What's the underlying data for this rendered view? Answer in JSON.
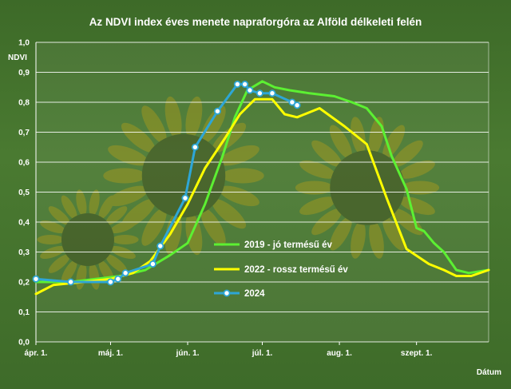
{
  "chart_data": {
    "type": "line",
    "title": "Az NDVI index éves menete napraforgóra az Alföld délkeleti felén",
    "ylabel": "NDVI",
    "xlabel": "Dátum",
    "ylim": [
      0,
      1.0
    ],
    "yticks": [
      "0,0",
      "0,1",
      "0,2",
      "0,3",
      "0,4",
      "0,5",
      "0,6",
      "0,7",
      "0,8",
      "0,9",
      "1,0"
    ],
    "xticks": [
      "ápr. 1.",
      "máj. 1.",
      "jún. 1.",
      "júl. 1.",
      "aug. 1.",
      "szept. 1."
    ],
    "xlim": [
      "2000-04-01",
      "2000-09-30"
    ],
    "grid": true,
    "legend_position": "bottom-right",
    "colors": {
      "series_2019": "#5cf032",
      "series_2022": "#ffff00",
      "series_2024": "#2ea6d6",
      "marker_fill": "#ffffff"
    },
    "series": [
      {
        "name": "2019 - jó termésű év",
        "points": [
          [
            "04-01",
            0.2
          ],
          [
            "04-15",
            0.2
          ],
          [
            "04-25",
            0.21
          ],
          [
            "05-05",
            0.22
          ],
          [
            "05-15",
            0.24
          ],
          [
            "05-25",
            0.29
          ],
          [
            "06-01",
            0.33
          ],
          [
            "06-08",
            0.46
          ],
          [
            "06-15",
            0.62
          ],
          [
            "06-20",
            0.75
          ],
          [
            "06-25",
            0.84
          ],
          [
            "07-01",
            0.87
          ],
          [
            "07-06",
            0.85
          ],
          [
            "07-12",
            0.84
          ],
          [
            "07-20",
            0.83
          ],
          [
            "07-30",
            0.82
          ],
          [
            "08-06",
            0.8
          ],
          [
            "08-12",
            0.78
          ],
          [
            "08-18",
            0.72
          ],
          [
            "08-22",
            0.62
          ],
          [
            "08-28",
            0.51
          ],
          [
            "09-01",
            0.38
          ],
          [
            "09-04",
            0.37
          ],
          [
            "09-08",
            0.33
          ],
          [
            "09-12",
            0.3
          ],
          [
            "09-17",
            0.24
          ],
          [
            "09-22",
            0.23
          ],
          [
            "09-30",
            0.24
          ]
        ]
      },
      {
        "name": "2022 - rossz termésű év",
        "points": [
          [
            "04-01",
            0.16
          ],
          [
            "04-08",
            0.19
          ],
          [
            "04-20",
            0.2
          ],
          [
            "05-01",
            0.21
          ],
          [
            "05-10",
            0.23
          ],
          [
            "05-17",
            0.27
          ],
          [
            "05-25",
            0.36
          ],
          [
            "06-01",
            0.46
          ],
          [
            "06-08",
            0.58
          ],
          [
            "06-16",
            0.68
          ],
          [
            "06-22",
            0.76
          ],
          [
            "06-28",
            0.81
          ],
          [
            "07-05",
            0.81
          ],
          [
            "07-10",
            0.76
          ],
          [
            "07-15",
            0.75
          ],
          [
            "07-24",
            0.78
          ],
          [
            "08-03",
            0.72
          ],
          [
            "08-12",
            0.66
          ],
          [
            "08-20",
            0.48
          ],
          [
            "08-28",
            0.31
          ],
          [
            "09-06",
            0.26
          ],
          [
            "09-12",
            0.24
          ],
          [
            "09-17",
            0.22
          ],
          [
            "09-23",
            0.22
          ],
          [
            "09-30",
            0.24
          ]
        ]
      },
      {
        "name": "2024",
        "markers": true,
        "points": [
          [
            "04-01",
            0.21
          ],
          [
            "04-15",
            0.2
          ],
          [
            "05-01",
            0.2
          ],
          [
            "05-04",
            0.21
          ],
          [
            "05-07",
            0.23
          ],
          [
            "05-18",
            0.26
          ],
          [
            "05-21",
            0.32
          ],
          [
            "05-31",
            0.48
          ],
          [
            "06-04",
            0.65
          ],
          [
            "06-13",
            0.77
          ],
          [
            "06-21",
            0.86
          ],
          [
            "06-24",
            0.86
          ],
          [
            "06-26",
            0.84
          ],
          [
            "06-30",
            0.83
          ],
          [
            "07-05",
            0.83
          ],
          [
            "07-13",
            0.8
          ],
          [
            "07-15",
            0.79
          ]
        ]
      }
    ]
  }
}
